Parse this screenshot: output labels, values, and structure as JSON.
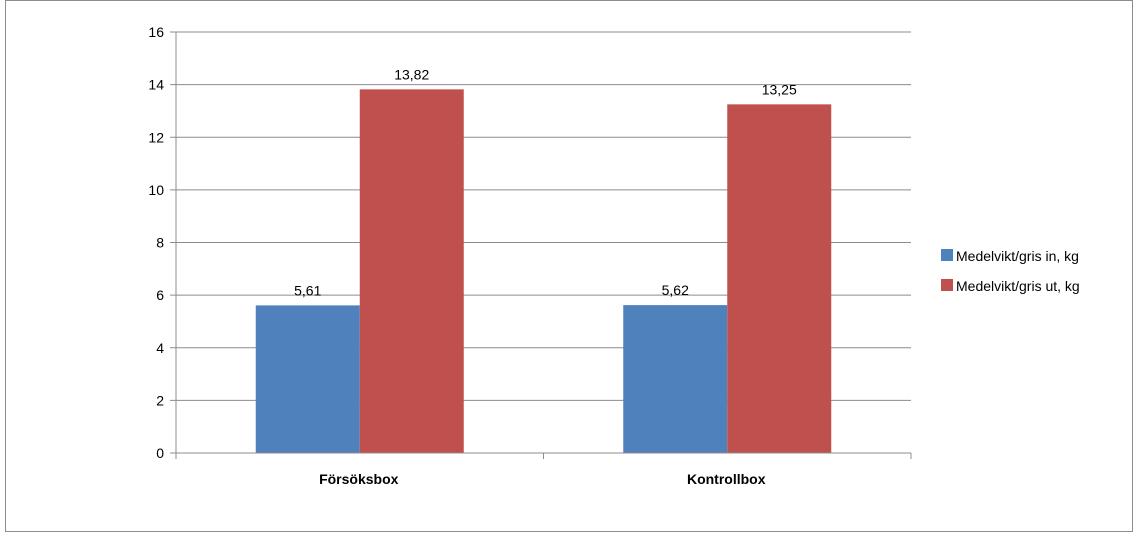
{
  "chart_data": {
    "type": "bar",
    "categories": [
      "Försöksbox",
      "Kontrollbox"
    ],
    "series": [
      {
        "name": "Medelvikt/gris in, kg",
        "values": [
          5.61,
          5.62
        ],
        "labels": [
          "5,61",
          "5,62"
        ],
        "color": "#4f81bd"
      },
      {
        "name": "Medelvikt/gris ut, kg",
        "values": [
          13.82,
          13.25
        ],
        "labels": [
          "13,82",
          "13,25"
        ],
        "color": "#c0504d"
      }
    ],
    "title": "",
    "xlabel": "",
    "ylabel": "",
    "ylim": [
      0,
      16
    ],
    "yticks": [
      0,
      2,
      4,
      6,
      8,
      10,
      12,
      14,
      16
    ],
    "grid": true,
    "legend_position": "right",
    "colors": {
      "gridline": "#8c8c8c",
      "axis": "#8c8c8c"
    }
  }
}
